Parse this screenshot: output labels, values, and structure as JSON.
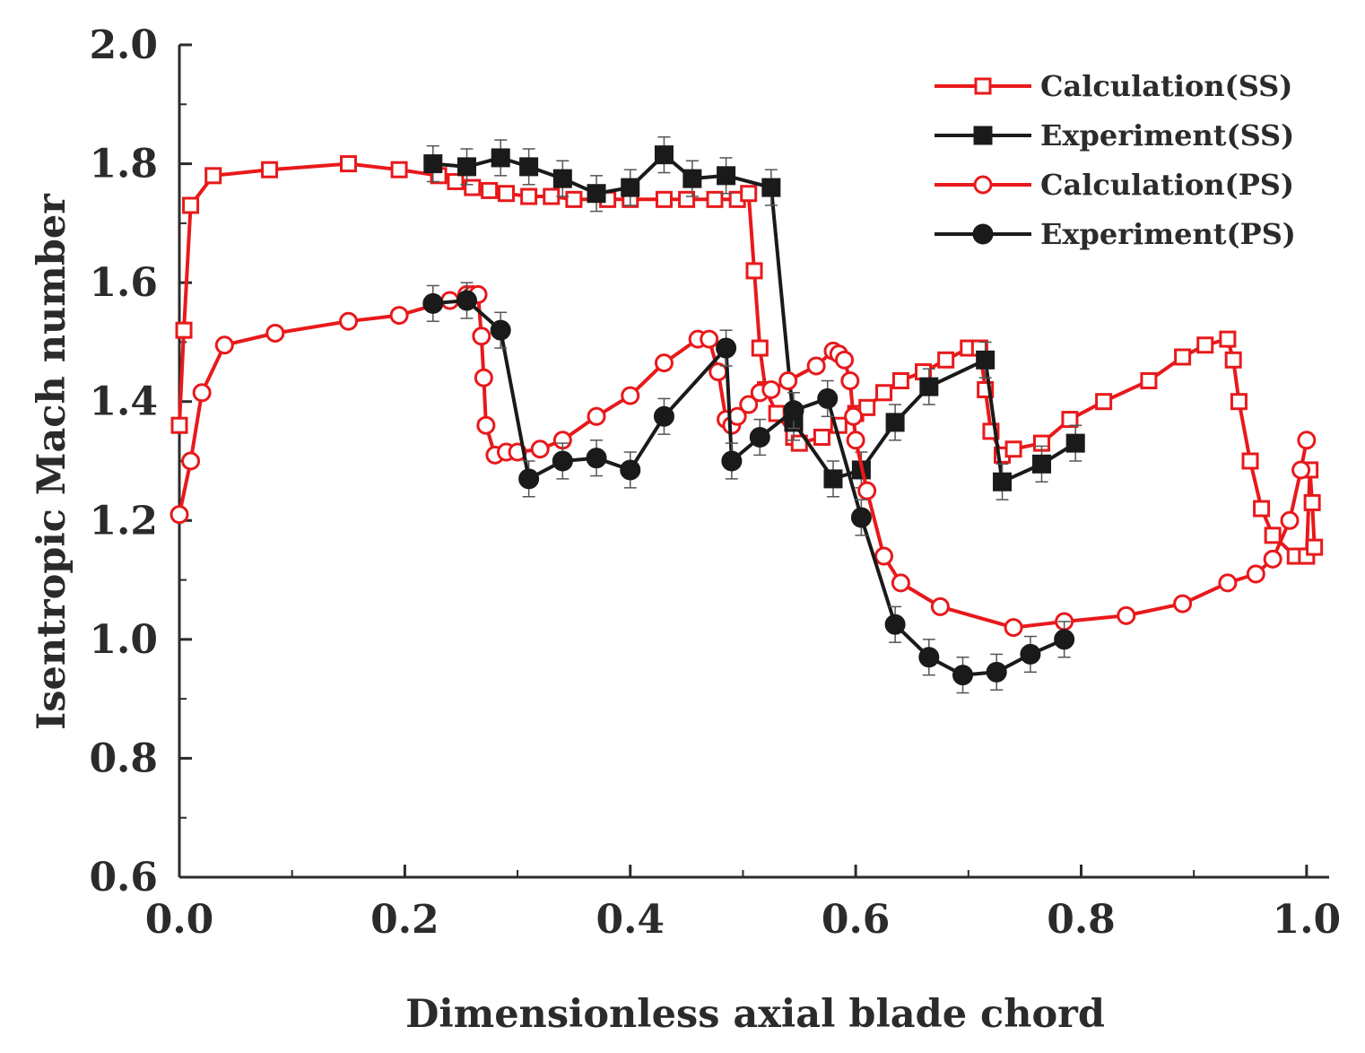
{
  "chart_data": {
    "type": "line",
    "title": "",
    "xlabel": "Dimensionless axial blade chord",
    "ylabel": "Isentropic Mach number",
    "xlim": [
      0.0,
      1.02
    ],
    "ylim": [
      0.6,
      2.0
    ],
    "x_ticks": [
      "0.0",
      "0.2",
      "0.4",
      "0.6",
      "0.8",
      "1.0"
    ],
    "y_ticks": [
      "0.6",
      "0.8",
      "1.0",
      "1.2",
      "1.4",
      "1.6",
      "1.8",
      "2.0"
    ],
    "legend_position": "top-right",
    "colors": {
      "calculation": "#e8191b",
      "experiment": "#1a1a1a"
    },
    "series": [
      {
        "name": "Calculation(SS)",
        "marker": "open-square",
        "color": "#e8191b",
        "x": [
          0.0,
          0.004,
          0.01,
          0.03,
          0.08,
          0.15,
          0.195,
          0.23,
          0.245,
          0.26,
          0.275,
          0.29,
          0.31,
          0.33,
          0.35,
          0.38,
          0.4,
          0.43,
          0.45,
          0.475,
          0.495,
          0.505,
          0.51,
          0.515,
          0.52,
          0.53,
          0.545,
          0.55,
          0.57,
          0.585,
          0.6,
          0.61,
          0.625,
          0.64,
          0.66,
          0.68,
          0.7,
          0.71,
          0.715,
          0.72,
          0.73,
          0.74,
          0.765,
          0.79,
          0.82,
          0.86,
          0.89,
          0.91,
          0.93,
          0.935,
          0.94,
          0.95,
          0.96,
          0.97,
          0.99,
          1.0,
          1.003,
          1.005,
          1.007
        ],
        "y": [
          1.36,
          1.52,
          1.73,
          1.78,
          1.79,
          1.8,
          1.79,
          1.78,
          1.77,
          1.76,
          1.755,
          1.75,
          1.745,
          1.745,
          1.74,
          1.74,
          1.74,
          1.74,
          1.74,
          1.74,
          1.74,
          1.75,
          1.62,
          1.49,
          1.42,
          1.38,
          1.34,
          1.33,
          1.34,
          1.36,
          1.38,
          1.39,
          1.415,
          1.435,
          1.45,
          1.47,
          1.49,
          1.49,
          1.42,
          1.35,
          1.31,
          1.32,
          1.33,
          1.37,
          1.4,
          1.435,
          1.475,
          1.495,
          1.505,
          1.47,
          1.4,
          1.3,
          1.22,
          1.175,
          1.14,
          1.14,
          1.285,
          1.23,
          1.155
        ]
      },
      {
        "name": "Experiment(SS)",
        "marker": "filled-square",
        "color": "#1a1a1a",
        "x": [
          0.225,
          0.255,
          0.285,
          0.31,
          0.34,
          0.37,
          0.4,
          0.43,
          0.455,
          0.485,
          0.525,
          0.545,
          0.58,
          0.605,
          0.635,
          0.665,
          0.715,
          0.73,
          0.765,
          0.795
        ],
        "y": [
          1.8,
          1.795,
          1.81,
          1.795,
          1.775,
          1.75,
          1.76,
          1.815,
          1.775,
          1.78,
          1.76,
          1.365,
          1.27,
          1.285,
          1.365,
          1.425,
          1.47,
          1.265,
          1.295,
          1.33
        ],
        "error": [
          0.03,
          0.03,
          0.03,
          0.03,
          0.03,
          0.03,
          0.03,
          0.03,
          0.03,
          0.03,
          0.03,
          0.03,
          0.03,
          0.03,
          0.03,
          0.03,
          0.03,
          0.03,
          0.03,
          0.03
        ]
      },
      {
        "name": "Calculation(PS)",
        "marker": "open-circle",
        "color": "#e8191b",
        "x": [
          0.0,
          0.01,
          0.02,
          0.04,
          0.085,
          0.15,
          0.195,
          0.24,
          0.255,
          0.26,
          0.265,
          0.268,
          0.27,
          0.272,
          0.28,
          0.29,
          0.3,
          0.32,
          0.34,
          0.37,
          0.4,
          0.43,
          0.46,
          0.47,
          0.478,
          0.485,
          0.49,
          0.495,
          0.505,
          0.515,
          0.525,
          0.54,
          0.565,
          0.58,
          0.585,
          0.59,
          0.595,
          0.598,
          0.6,
          0.61,
          0.625,
          0.64,
          0.675,
          0.74,
          0.785,
          0.84,
          0.89,
          0.93,
          0.955,
          0.97,
          0.985,
          0.995,
          1.0
        ],
        "y": [
          1.21,
          1.3,
          1.415,
          1.495,
          1.515,
          1.535,
          1.545,
          1.57,
          1.58,
          1.58,
          1.58,
          1.51,
          1.44,
          1.36,
          1.31,
          1.315,
          1.315,
          1.32,
          1.335,
          1.375,
          1.41,
          1.465,
          1.505,
          1.505,
          1.45,
          1.37,
          1.36,
          1.375,
          1.395,
          1.415,
          1.42,
          1.435,
          1.46,
          1.485,
          1.48,
          1.47,
          1.435,
          1.375,
          1.335,
          1.25,
          1.14,
          1.095,
          1.055,
          1.02,
          1.03,
          1.04,
          1.06,
          1.095,
          1.11,
          1.135,
          1.2,
          1.285,
          1.335
        ]
      },
      {
        "name": "Experiment(PS)",
        "marker": "filled-circle",
        "color": "#1a1a1a",
        "x": [
          0.225,
          0.255,
          0.285,
          0.31,
          0.34,
          0.37,
          0.4,
          0.43,
          0.485,
          0.49,
          0.515,
          0.545,
          0.575,
          0.605,
          0.635,
          0.665,
          0.695,
          0.725,
          0.755,
          0.785
        ],
        "y": [
          1.565,
          1.57,
          1.52,
          1.27,
          1.3,
          1.305,
          1.285,
          1.375,
          1.49,
          1.3,
          1.34,
          1.385,
          1.405,
          1.205,
          1.025,
          0.97,
          0.94,
          0.945,
          0.975,
          1.0
        ],
        "error": [
          0.03,
          0.03,
          0.03,
          0.03,
          0.03,
          0.03,
          0.03,
          0.03,
          0.03,
          0.03,
          0.03,
          0.03,
          0.03,
          0.03,
          0.03,
          0.03,
          0.03,
          0.03,
          0.03,
          0.03
        ]
      }
    ]
  }
}
